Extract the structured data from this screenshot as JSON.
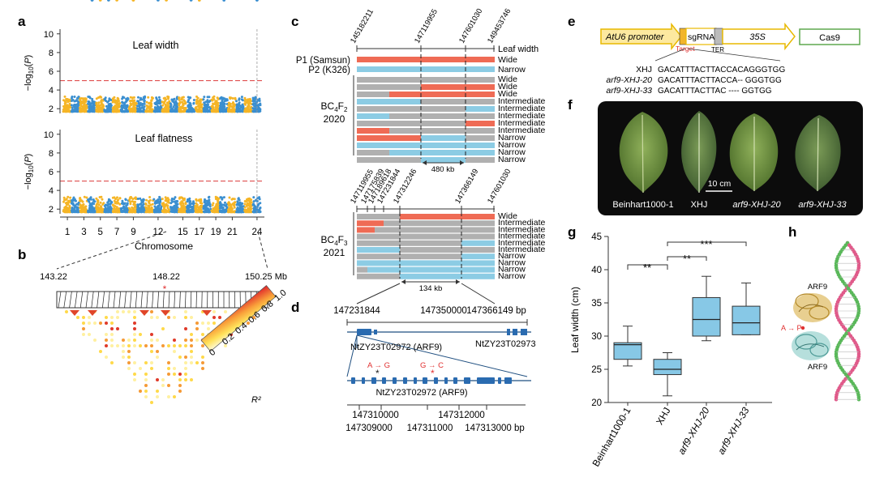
{
  "panels": {
    "a": "a",
    "b": "b",
    "c": "c",
    "d": "d",
    "e": "e",
    "f": "f",
    "g": "g",
    "h": "h"
  },
  "panel_a": {
    "top_title": "Leaf width",
    "bottom_title": "Leaf flatness",
    "ylabel": "−log10(P)",
    "yticks": [
      "2",
      "4",
      "6",
      "8",
      "10"
    ],
    "chromosome_ticks": [
      "1",
      "3",
      "5",
      "7",
      "9",
      "12",
      "15",
      "17",
      "19",
      "21",
      "24"
    ],
    "xlabel": "Chromosome",
    "colors": {
      "odd": "#f5b526",
      "even": "#3b8fd0",
      "threshold": "#e05050"
    },
    "threshold": 5
  },
  "panel_b": {
    "positions": [
      "143.22",
      "148.22",
      "150.25 Mb"
    ],
    "legend_ticks": [
      "0",
      "0.2",
      "0.4",
      "0.6",
      "0.8",
      "1.0"
    ],
    "legend_label": "R²"
  },
  "panel_c": {
    "top_markers": [
      "145182211",
      "147119955",
      "147601030",
      "149453746"
    ],
    "trait_label": "Leaf width",
    "parents": [
      {
        "label": "P1 (Samsun)",
        "pheno": "Wide"
      },
      {
        "label": "P2 (K326)",
        "pheno": "Narrow"
      }
    ],
    "bc4f2_label": "BC4F2",
    "bc4f2_year": "2020",
    "bc4f2_pheno": [
      "Wide",
      "Wide",
      "Wide",
      "Intermediate",
      "Intermediate",
      "Intermediate",
      "Intermediate",
      "Intermediate",
      "Narrow",
      "Narrow",
      "Narrow",
      "Narrow"
    ],
    "interval_1": "480 kb",
    "mid_markers": [
      "147119955",
      "147175839",
      "147189618",
      "147231844",
      "147312246",
      "147366149",
      "147601030"
    ],
    "bc4f3_label": "BC4F3",
    "bc4f3_year": "2021",
    "bc4f3_pheno": [
      "Wide",
      "Intermediate",
      "Intermediate",
      "Intermediate",
      "Intermediate",
      "Intermediate",
      "Narrow",
      "Narrow",
      "Narrow",
      "Narrow"
    ],
    "interval_2": "134 kb"
  },
  "panel_d": {
    "left_pos": "147231844",
    "mid_pos": "147350000",
    "right_pos": "147366149 bp",
    "gene1": "NtZY23T02972 (ARF9)",
    "gene2": "NtZY23T02973",
    "snp1": "A → G",
    "snp2": "G → C",
    "gene_zoom": "NtZY23T02972 (ARF9)",
    "axis_top": [
      "147310000",
      "147312000"
    ],
    "axis_bottom": [
      "147309000",
      "147311000",
      "147313000 bp"
    ]
  },
  "panel_e": {
    "promoter": "AtU6 promoter",
    "sgrna": "sgRNA",
    "target": "Target",
    "ter": "TER",
    "p35s": "35S",
    "cas9": "Cas9",
    "alignment": [
      {
        "name": "XHJ",
        "seq": "GACATTTACTTACCACAGGGTGG"
      },
      {
        "name": "arf9-XHJ-20",
        "seq": "GACATTTACTTACCA-- GGGTGG"
      },
      {
        "name": "arf9-XHJ-33",
        "seq": "GACATTTACTTAC ---- GGTGG"
      }
    ]
  },
  "panel_f": {
    "labels": [
      "Beinhart1000-1",
      "XHJ",
      "arf9-XHJ-20",
      "arf9-XHJ-33"
    ],
    "scale": "10 cm"
  },
  "panel_g": {
    "ylabel": "Leaf width (cm)",
    "yticks": [
      "20",
      "25",
      "30",
      "35",
      "40",
      "45"
    ],
    "sig": [
      "**",
      "**",
      "***"
    ]
  },
  "panel_h": {
    "arf_top": "ARF9",
    "arf_bottom": "ARF9",
    "mutation": "A → P"
  },
  "chart_data": {
    "type": "box",
    "title": "",
    "xlabel": "",
    "ylabel": "Leaf width (cm)",
    "ylim": [
      20,
      45
    ],
    "categories": [
      "Beinhart1000-1",
      "XHJ",
      "arf9-XHJ-20",
      "arf9-XHJ-33"
    ],
    "boxes": [
      {
        "min": 25.5,
        "q1": 26.5,
        "median": 28.7,
        "q3": 29.0,
        "max": 31.5
      },
      {
        "min": 21.0,
        "q1": 24.2,
        "median": 25.0,
        "q3": 26.5,
        "max": 27.5
      },
      {
        "min": 29.3,
        "q1": 30.0,
        "median": 32.5,
        "q3": 35.8,
        "max": 39.0
      },
      {
        "min": 30.2,
        "q1": 30.2,
        "median": 32.0,
        "q3": 34.5,
        "max": 38.0
      }
    ],
    "color": "#87c8e6"
  }
}
